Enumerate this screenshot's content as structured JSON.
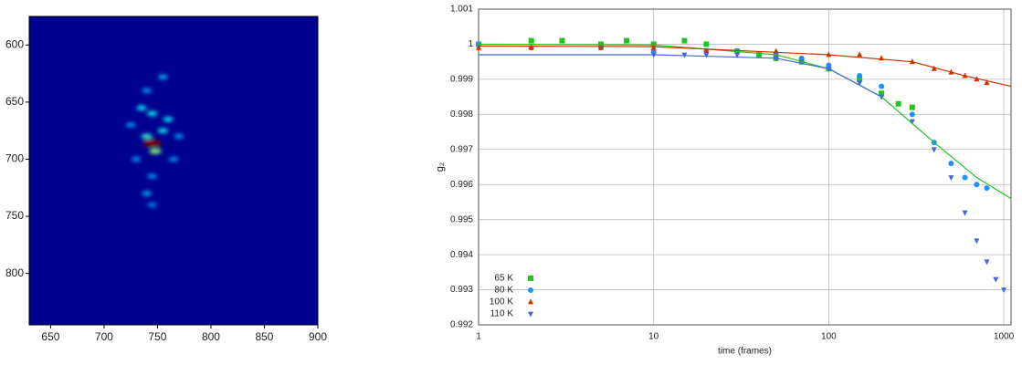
{
  "chart_data": [
    {
      "type": "heatmap",
      "background": "#00008f",
      "blur": true,
      "x": [
        745,
        748,
        740,
        755,
        745,
        760,
        735,
        755,
        740,
        765,
        730,
        745,
        740,
        745,
        770,
        725
      ],
      "y": [
        686,
        693,
        680,
        675,
        660,
        665,
        655,
        628,
        640,
        700,
        700,
        715,
        730,
        740,
        680,
        670
      ],
      "values": [
        1.0,
        0.45,
        0.35,
        0.3,
        0.3,
        0.28,
        0.28,
        0.22,
        0.2,
        0.2,
        0.2,
        0.2,
        0.22,
        0.18,
        0.2,
        0.2
      ],
      "xlim": [
        630,
        900
      ],
      "ylim": [
        845,
        575
      ],
      "xticks": [
        650,
        700,
        750,
        800,
        850,
        900
      ],
      "yticks": [
        600,
        650,
        700,
        750,
        800
      ]
    },
    {
      "type": "scatter",
      "xlog": true,
      "grid": true,
      "legend": "lower-left",
      "xlabel": "time (frames)",
      "ylabel": "g₂",
      "xlim": [
        1,
        1100
      ],
      "ylim": [
        0.992,
        1.001
      ],
      "xticks": [
        1,
        10,
        100,
        1000
      ],
      "yticks": [
        0.992,
        0.993,
        0.994,
        0.995,
        0.996,
        0.997,
        0.998,
        0.999,
        1,
        1.001
      ],
      "series": [
        {
          "name": "65 K",
          "color": "#22c422",
          "marker": "square",
          "x": [
            1,
            2,
            3,
            5,
            7,
            10,
            15,
            20,
            30,
            40,
            50,
            70,
            100,
            150,
            200,
            250,
            300
          ],
          "values": [
            1.0,
            1.0001,
            1.0001,
            1.0,
            1.0001,
            1.0,
            1.0001,
            1.0,
            0.9998,
            0.9997,
            0.9996,
            0.9995,
            0.9993,
            0.999,
            0.9986,
            0.9983,
            0.9982
          ]
        },
        {
          "name": "80 K",
          "color": "#1e90ff",
          "marker": "circle",
          "x": [
            1,
            2,
            5,
            10,
            20,
            30,
            50,
            70,
            100,
            150,
            200,
            300,
            400,
            500,
            600,
            700,
            800
          ],
          "values": [
            1.0,
            0.9999,
            0.9999,
            0.9998,
            0.9998,
            0.9998,
            0.9997,
            0.9996,
            0.9994,
            0.9991,
            0.9988,
            0.998,
            0.9972,
            0.9966,
            0.9962,
            0.996,
            0.9959
          ]
        },
        {
          "name": "100 K",
          "color": "#cc3300",
          "marker": "triangle-up",
          "x": [
            1,
            2,
            5,
            10,
            20,
            50,
            100,
            150,
            200,
            300,
            400,
            500,
            600,
            700,
            800
          ],
          "values": [
            0.9999,
            0.9999,
            0.9999,
            0.9999,
            0.9998,
            0.9998,
            0.9997,
            0.9997,
            0.9996,
            0.9995,
            0.9993,
            0.9992,
            0.9991,
            0.999,
            0.9989
          ]
        },
        {
          "name": "110 K",
          "color": "#4466dd",
          "marker": "triangle-down",
          "x": [
            10,
            15,
            20,
            30,
            50,
            70,
            100,
            150,
            200,
            300,
            400,
            500,
            600,
            700,
            800,
            900,
            1000
          ],
          "values": [
            0.9997,
            0.9997,
            0.9997,
            0.9997,
            0.9996,
            0.9995,
            0.9993,
            0.9989,
            0.9985,
            0.9978,
            0.997,
            0.9962,
            0.9952,
            0.9944,
            0.9938,
            0.9933,
            0.993
          ]
        }
      ],
      "fits": [
        {
          "color": "#22c422",
          "x": [
            1,
            10,
            50,
            100,
            200,
            400,
            700,
            1100
          ],
          "values": [
            1.0,
            0.99998,
            0.9997,
            0.9993,
            0.9985,
            0.9972,
            0.9962,
            0.9956
          ]
        },
        {
          "color": "#cc3300",
          "x": [
            1,
            10,
            100,
            300,
            600,
            1100
          ],
          "values": [
            0.99995,
            0.99993,
            0.9997,
            0.9995,
            0.9991,
            0.9988
          ]
        },
        {
          "color": "#4466dd",
          "x": [
            1,
            10,
            50,
            100,
            200
          ],
          "values": [
            0.9997,
            0.9997,
            0.9996,
            0.9993,
            0.9985
          ]
        }
      ]
    }
  ]
}
